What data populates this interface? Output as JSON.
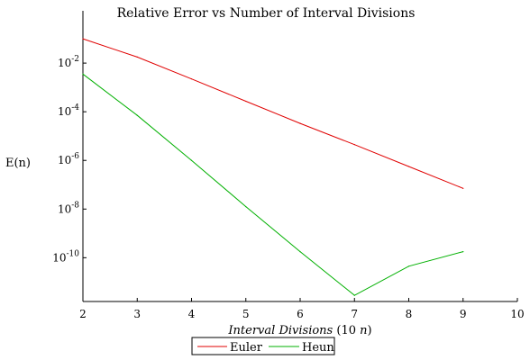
{
  "chart_data": {
    "type": "line",
    "title": "Relative Error vs Number of Interval Divisions",
    "xlabel": {
      "italic": "Interval Divisions",
      "rest_open": " (10 ",
      "var": "n",
      "rest_close": ")"
    },
    "ylabel": "E(n)",
    "xlim": [
      2,
      10
    ],
    "ylim_log10": [
      -11.8,
      0.15
    ],
    "y_scale": "log",
    "x_ticks": [
      "2",
      "3",
      "4",
      "5",
      "6",
      "7",
      "8",
      "9",
      "10"
    ],
    "x_tick_values": [
      2,
      3,
      4,
      5,
      6,
      7,
      8,
      9,
      10
    ],
    "y_ticks": [
      {
        "base": "10",
        "exp": "-2"
      },
      {
        "base": "10",
        "exp": "-4"
      },
      {
        "base": "10",
        "exp": "-6"
      },
      {
        "base": "10",
        "exp": "-8"
      },
      {
        "base": "10",
        "exp": "-10"
      }
    ],
    "y_tick_values_log10": [
      -2,
      -4,
      -6,
      -8,
      -10
    ],
    "grid": false,
    "legend_position": "bottom-center",
    "series": [
      {
        "name": "Euler",
        "color": "#e00000",
        "x": [
          2,
          3,
          4,
          5,
          6,
          7,
          8,
          9
        ],
        "log10_y": [
          -1.0,
          -1.75,
          -2.65,
          -3.57,
          -4.48,
          -5.35,
          -6.25,
          -7.15
        ]
      },
      {
        "name": "Heun",
        "color": "#00b000",
        "x": [
          2,
          3,
          4,
          5,
          6,
          7,
          8,
          9
        ],
        "log10_y": [
          -2.45,
          -4.15,
          -6.0,
          -7.9,
          -9.75,
          -11.55,
          -10.35,
          -9.75
        ]
      }
    ]
  }
}
